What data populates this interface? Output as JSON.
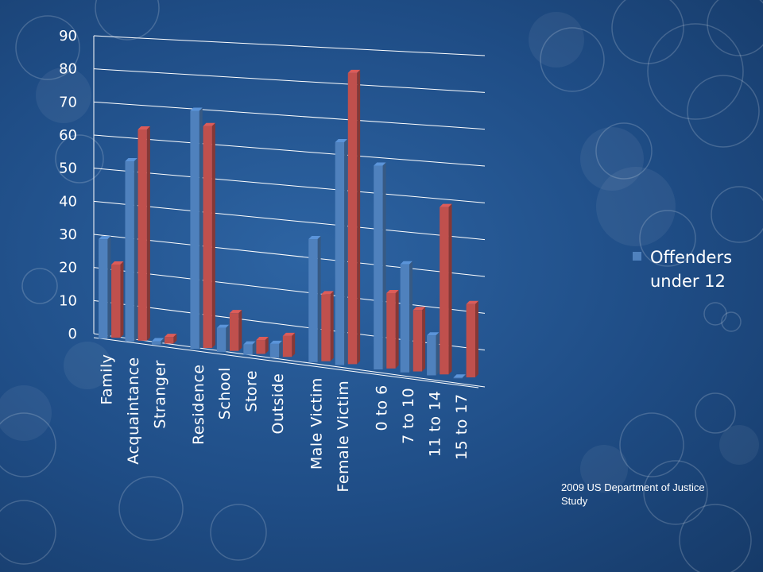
{
  "chart_data": {
    "type": "bar",
    "categories": [
      "Family",
      "Acquaintance",
      "Stranger",
      "Residence",
      "School",
      "Store",
      "Outside",
      "Male Victim",
      "Female Victim",
      "0 to 6",
      "7 to 10",
      "11 to 14",
      "15 to 17"
    ],
    "groups": [
      [
        0,
        1,
        2
      ],
      [
        3,
        4,
        5,
        6
      ],
      [
        7,
        8
      ],
      [
        9,
        10,
        11,
        12
      ]
    ],
    "series": [
      {
        "name": "",
        "color": "#4f81bd",
        "values": [
          30,
          54,
          1,
          70,
          7,
          3,
          4,
          35,
          63,
          57,
          30,
          11,
          0
        ]
      },
      {
        "name": "Offenders under 12",
        "color": "#c0504d",
        "values": [
          22,
          63,
          2,
          65,
          11,
          4,
          6,
          19,
          82,
          21,
          17,
          46,
          20
        ]
      }
    ],
    "yticks": [
      "0",
      "10",
      "20",
      "30",
      "40",
      "50",
      "60",
      "70",
      "80",
      "90"
    ],
    "ylim": [
      0,
      90
    ],
    "grid": true,
    "legend": "right"
  },
  "source": "2009 US Department of Justice Study"
}
